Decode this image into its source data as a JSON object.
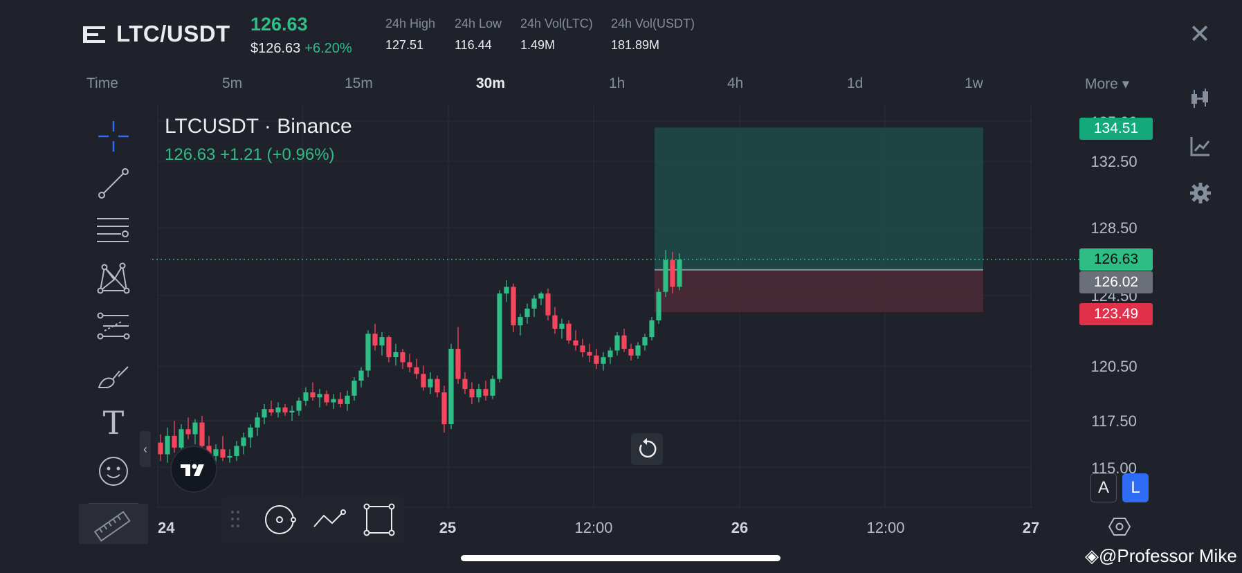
{
  "header": {
    "pair": "LTC/USDT",
    "last_price": "126.63",
    "usd_price": "$126.63",
    "change_pct": "+6.20%",
    "stats": [
      {
        "label": "24h High",
        "value": "127.51"
      },
      {
        "label": "24h Low",
        "value": "116.44"
      },
      {
        "label": "24h Vol(LTC)",
        "value": "1.49M"
      },
      {
        "label": "24h Vol(USDT)",
        "value": "181.89M"
      }
    ],
    "close_glyph": "✕"
  },
  "intervals": {
    "time_label": "Time",
    "items": [
      "5m",
      "15m",
      "30m",
      "1h",
      "4h",
      "1d",
      "1w"
    ],
    "active": "30m",
    "more_label": "More ▾"
  },
  "chart": {
    "legend_title": "LTCUSDT · Binance",
    "legend_values": "126.63  +1.21 (+0.96%)",
    "price_labels": [
      "135.00",
      "132.50",
      "128.50",
      "124.50",
      "120.50",
      "117.50",
      "115.00"
    ],
    "time_labels": [
      "24",
      "25",
      "12:00",
      "26",
      "12:00",
      "27"
    ],
    "badges": {
      "target": "134.51",
      "last": "126.63",
      "entry": "126.02",
      "stop": "123.49"
    },
    "colors": {
      "up": "#2ebd85",
      "down": "#f6465d",
      "target_zone": "#1f4a48",
      "stop_zone": "#4a2a35",
      "grid": "#2b2f38"
    }
  },
  "chart_data": {
    "type": "candlestick",
    "ylim": [
      115.0,
      135.0
    ],
    "price_ticks": [
      117.5,
      120.5,
      124.5,
      128.5,
      132.5
    ],
    "last_price": 126.63,
    "position": {
      "type": "long",
      "target": 134.51,
      "entry": 126.02,
      "stop": 123.49
    },
    "candles": [
      [
        115.7,
        116.2,
        114.6,
        115.0
      ],
      [
        115.0,
        116.6,
        114.5,
        116.1
      ],
      [
        116.1,
        117.0,
        115.1,
        115.4
      ],
      [
        115.4,
        116.8,
        114.8,
        116.5
      ],
      [
        116.5,
        117.2,
        115.9,
        116.2
      ],
      [
        116.2,
        117.1,
        115.6,
        116.9
      ],
      [
        116.9,
        117.3,
        115.2,
        115.5
      ],
      [
        115.5,
        116.1,
        114.7,
        114.9
      ],
      [
        114.9,
        115.6,
        114.4,
        115.3
      ],
      [
        115.3,
        116.1,
        114.6,
        114.8
      ],
      [
        114.8,
        115.3,
        114.5,
        114.9
      ],
      [
        114.9,
        115.8,
        114.6,
        115.5
      ],
      [
        115.5,
        116.3,
        115.0,
        116.0
      ],
      [
        116.0,
        116.8,
        115.4,
        116.6
      ],
      [
        116.6,
        117.5,
        116.1,
        117.2
      ],
      [
        117.2,
        118.0,
        116.8,
        117.7
      ],
      [
        117.7,
        118.2,
        117.3,
        117.5
      ],
      [
        117.5,
        118.1,
        117.2,
        117.8
      ],
      [
        117.8,
        118.0,
        117.3,
        117.5
      ],
      [
        117.5,
        117.9,
        117.0,
        117.6
      ],
      [
        117.6,
        118.4,
        117.3,
        118.2
      ],
      [
        118.2,
        119.0,
        117.9,
        118.7
      ],
      [
        118.7,
        119.3,
        118.2,
        118.4
      ],
      [
        118.4,
        118.9,
        117.8,
        118.6
      ],
      [
        118.6,
        118.8,
        117.9,
        118.1
      ],
      [
        118.1,
        118.6,
        117.7,
        118.3
      ],
      [
        118.3,
        118.7,
        117.8,
        118.0
      ],
      [
        118.0,
        118.8,
        117.6,
        118.5
      ],
      [
        118.5,
        119.6,
        118.2,
        119.4
      ],
      [
        119.4,
        120.2,
        119.0,
        120.0
      ],
      [
        120.0,
        122.4,
        119.6,
        122.2
      ],
      [
        122.2,
        122.8,
        121.2,
        121.5
      ],
      [
        121.5,
        122.3,
        120.9,
        122.0
      ],
      [
        122.0,
        122.1,
        120.5,
        120.8
      ],
      [
        120.8,
        121.6,
        120.3,
        121.1
      ],
      [
        121.1,
        121.3,
        120.1,
        120.5
      ],
      [
        120.5,
        121.0,
        119.9,
        120.2
      ],
      [
        120.2,
        120.7,
        119.5,
        119.8
      ],
      [
        119.8,
        120.3,
        118.8,
        119.0
      ],
      [
        119.0,
        119.9,
        118.6,
        119.5
      ],
      [
        119.5,
        119.7,
        118.4,
        118.7
      ],
      [
        118.7,
        119.1,
        116.3,
        116.8
      ],
      [
        116.8,
        121.6,
        116.5,
        121.3
      ],
      [
        121.3,
        122.6,
        119.2,
        119.5
      ],
      [
        119.5,
        119.9,
        118.6,
        118.9
      ],
      [
        118.9,
        119.3,
        118.0,
        118.4
      ],
      [
        118.4,
        119.2,
        118.1,
        118.9
      ],
      [
        118.9,
        119.4,
        118.2,
        118.5
      ],
      [
        118.5,
        119.7,
        118.3,
        119.5
      ],
      [
        119.5,
        124.8,
        119.3,
        124.6
      ],
      [
        124.6,
        125.4,
        124.1,
        125.0
      ],
      [
        125.0,
        125.2,
        122.3,
        122.7
      ],
      [
        122.7,
        123.4,
        122.1,
        123.2
      ],
      [
        123.2,
        124.0,
        122.8,
        123.7
      ],
      [
        123.7,
        124.5,
        123.2,
        124.3
      ],
      [
        124.3,
        124.7,
        123.9,
        124.6
      ],
      [
        124.6,
        124.9,
        123.0,
        123.3
      ],
      [
        123.3,
        123.8,
        122.2,
        122.5
      ],
      [
        122.5,
        123.1,
        121.9,
        122.8
      ],
      [
        122.8,
        123.0,
        121.6,
        121.8
      ],
      [
        121.8,
        122.4,
        121.2,
        121.5
      ],
      [
        121.5,
        121.9,
        120.8,
        121.1
      ],
      [
        121.1,
        121.6,
        120.5,
        120.9
      ],
      [
        120.9,
        121.3,
        120.1,
        120.4
      ],
      [
        120.4,
        121.1,
        120.0,
        120.8
      ],
      [
        120.8,
        121.4,
        120.4,
        121.2
      ],
      [
        121.2,
        122.3,
        120.9,
        122.1
      ],
      [
        122.1,
        122.5,
        121.1,
        121.3
      ],
      [
        121.3,
        121.6,
        120.6,
        120.9
      ],
      [
        120.9,
        121.7,
        120.7,
        121.5
      ],
      [
        121.5,
        122.2,
        121.2,
        122.0
      ],
      [
        122.0,
        123.2,
        121.8,
        123.0
      ],
      [
        123.0,
        124.9,
        122.8,
        124.7
      ],
      [
        124.7,
        127.2,
        124.4,
        126.6
      ],
      [
        126.6,
        127.1,
        124.6,
        125.0
      ],
      [
        125.0,
        127.0,
        124.8,
        126.63
      ]
    ]
  },
  "toolbar": {
    "tools": [
      "crosshair-icon",
      "trendline-icon",
      "horizontal-lines-icon",
      "pattern-icon",
      "fib-icon",
      "brush-icon",
      "text-icon",
      "emoji-icon"
    ],
    "text_tool_glyph": "T"
  },
  "bottom": {
    "auto_label": "A",
    "log_label": "L",
    "watermark": "@Professor Mike",
    "collapse_glyph": "‹"
  }
}
